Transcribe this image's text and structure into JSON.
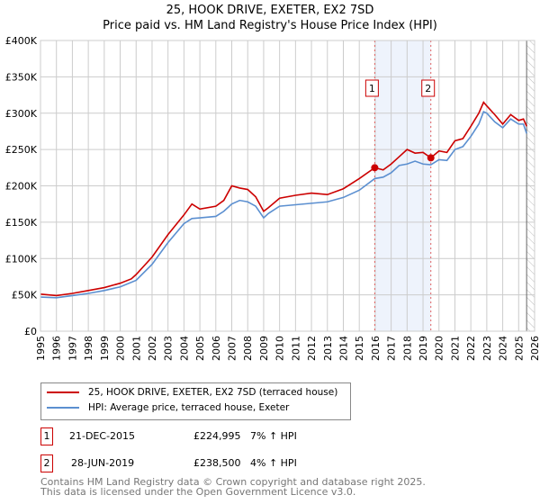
{
  "title_line1": "25, HOOK DRIVE, EXETER, EX2 7SD",
  "title_line2": "Price paid vs. HM Land Registry's House Price Index (HPI)",
  "colors": {
    "property": "#cc0000",
    "hpi": "#5b8fd0",
    "shade": "#eef3fc",
    "grid": "#cccccc"
  },
  "chart_data": {
    "type": "line",
    "xlim": [
      1995,
      2026
    ],
    "ylim": [
      0,
      400000
    ],
    "x_ticks": [
      "1995",
      "1996",
      "1997",
      "1998",
      "1999",
      "2000",
      "2001",
      "2002",
      "2003",
      "2004",
      "2005",
      "2006",
      "2007",
      "2008",
      "2009",
      "2010",
      "2011",
      "2012",
      "2013",
      "2014",
      "2015",
      "2016",
      "2017",
      "2018",
      "2019",
      "2020",
      "2021",
      "2022",
      "2023",
      "2024",
      "2025",
      "2026"
    ],
    "y_ticks": [
      {
        "v": 0,
        "label": "£0"
      },
      {
        "v": 50000,
        "label": "£50K"
      },
      {
        "v": 100000,
        "label": "£100K"
      },
      {
        "v": 150000,
        "label": "£150K"
      },
      {
        "v": 200000,
        "label": "£200K"
      },
      {
        "v": 250000,
        "label": "£250K"
      },
      {
        "v": 300000,
        "label": "£300K"
      },
      {
        "v": 350000,
        "label": "£350K"
      },
      {
        "v": 400000,
        "label": "£400K"
      }
    ],
    "shaded_range": [
      2015.97,
      2019.49
    ],
    "hatched_from": 2025.5,
    "series": [
      {
        "name": "25, HOOK DRIVE, EXETER, EX2 7SD (terraced house)",
        "color": "#cc0000",
        "x": [
          1995,
          1996,
          1997,
          1998,
          1999,
          2000,
          2000.7,
          2001,
          2002,
          2003,
          2004,
          2004.5,
          2005,
          2006,
          2006.5,
          2007,
          2007.5,
          2008,
          2008.5,
          2009,
          2009.3,
          2010,
          2011,
          2012,
          2013,
          2014,
          2015,
          2015.97,
          2016.5,
          2017,
          2017.5,
          2018,
          2018.5,
          2019,
          2019.49,
          2020,
          2020.5,
          2021,
          2021.5,
          2022,
          2022.5,
          2022.8,
          2023,
          2023.5,
          2024,
          2024.5,
          2025,
          2025.3,
          2025.5
        ],
        "y": [
          51000,
          49000,
          52000,
          56000,
          60000,
          66000,
          72000,
          78000,
          102000,
          133000,
          160000,
          175000,
          168000,
          172000,
          180000,
          200000,
          197000,
          195000,
          185000,
          165000,
          170000,
          183000,
          187000,
          190000,
          188000,
          196000,
          210000,
          224995,
          222000,
          230000,
          240000,
          250000,
          245000,
          246000,
          238500,
          248000,
          246000,
          262000,
          265000,
          282000,
          300000,
          315000,
          310000,
          298000,
          285000,
          298000,
          290000,
          292000,
          282000
        ]
      },
      {
        "name": "HPI: Average price, terraced house, Exeter",
        "color": "#5b8fd0",
        "x": [
          1995,
          1996,
          1997,
          1998,
          1999,
          2000,
          2001,
          2002,
          2003,
          2004,
          2004.5,
          2005,
          2006,
          2006.5,
          2007,
          2007.5,
          2008,
          2008.5,
          2009,
          2009.3,
          2010,
          2011,
          2012,
          2013,
          2014,
          2015,
          2015.97,
          2016.5,
          2017,
          2017.5,
          2018,
          2018.5,
          2019,
          2019.49,
          2020,
          2020.5,
          2021,
          2021.5,
          2022,
          2022.5,
          2022.8,
          2023,
          2023.5,
          2024,
          2024.5,
          2025,
          2025.3,
          2025.5
        ],
        "y": [
          47000,
          46000,
          49000,
          52000,
          56000,
          61000,
          70000,
          92000,
          122000,
          148000,
          155000,
          156000,
          158000,
          165000,
          175000,
          180000,
          178000,
          172000,
          156000,
          162000,
          172000,
          174000,
          176000,
          178000,
          184000,
          194000,
          210000,
          212000,
          218000,
          228000,
          230000,
          234000,
          230000,
          229000,
          236000,
          235000,
          250000,
          254000,
          268000,
          285000,
          302000,
          300000,
          288000,
          280000,
          292000,
          285000,
          285000,
          272000
        ]
      }
    ],
    "annotations": [
      {
        "label": "1",
        "x": 2015.97,
        "y": 224995
      },
      {
        "label": "2",
        "x": 2019.49,
        "y": 238500
      }
    ]
  },
  "legend": [
    "25, HOOK DRIVE, EXETER, EX2 7SD (terraced house)",
    "HPI: Average price, terraced house, Exeter"
  ],
  "transactions": [
    {
      "num": "1",
      "date": "21-DEC-2015",
      "price": "£224,995",
      "hpi": "7% ↑ HPI"
    },
    {
      "num": "2",
      "date": "28-JUN-2019",
      "price": "£238,500",
      "hpi": "4% ↑ HPI"
    }
  ],
  "footer": [
    "Contains HM Land Registry data © Crown copyright and database right 2025.",
    "This data is licensed under the Open Government Licence v3.0."
  ]
}
